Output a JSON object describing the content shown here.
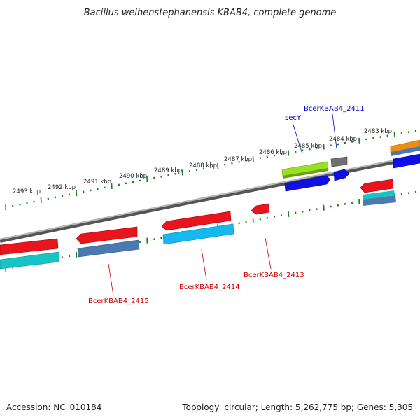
{
  "title": "Bacillus weihenstephanensis KBAB4, complete genome",
  "footer": {
    "accession": "Accession: NC_010184",
    "summary": "Topology: circular; Length: 5,262,775 bp; Genes: 5,305"
  },
  "colors": {
    "tick": "#1a7a1a",
    "backbone": "#7f7f7f",
    "red": "#e8141e",
    "blue": "#1010e6",
    "lime": "#98e020",
    "cyan": "#16b8f0",
    "teal": "#16c4c4",
    "steel": "#4a7ab0",
    "gray": "#707070",
    "orange": "#f08c10",
    "label_red": "#cc0000",
    "label_blue": "#0000cc"
  },
  "scale_labels": [
    "2493 kbp",
    "2492 kbp",
    "2491 kbp",
    "2490 kbp",
    "2489 kbp",
    "2488 kbp",
    "2487 kbp",
    "2486 kbp",
    "2485 kbp",
    "2484 kbp",
    "2483 kbp"
  ],
  "gene_labels": {
    "secY": "secY",
    "g2411": "BcerKBAB4_2411",
    "g2413": "BcerKBAB4_2413",
    "g2414": "BcerKBAB4_2414",
    "g2415": "BcerKBAB4_2415"
  }
}
